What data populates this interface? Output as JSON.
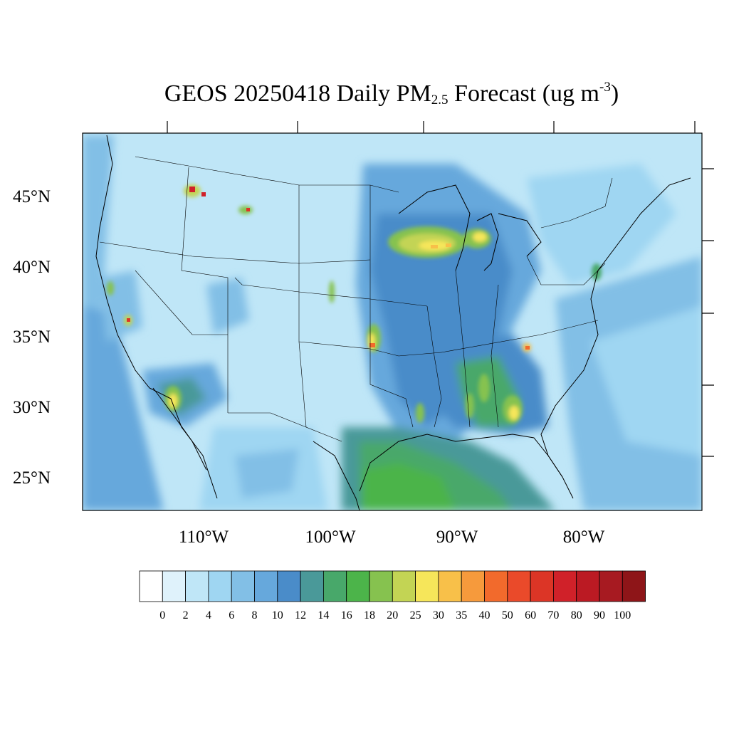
{
  "title": {
    "prefix": "GEOS 20250418 Daily PM",
    "subscript": "2.5",
    "middle": " Forecast (ug m",
    "superscript": "-3",
    "suffix": ")"
  },
  "map": {
    "lat_labels": [
      "45°N",
      "40°N",
      "35°N",
      "30°N",
      "25°N"
    ],
    "lon_labels": [
      "110°W",
      "100°W",
      "90°W",
      "80°W"
    ],
    "background_color": "#bfe6f7"
  },
  "colorbar": {
    "labels": [
      "0",
      "2",
      "4",
      "6",
      "8",
      "10",
      "12",
      "14",
      "16",
      "18",
      "20",
      "25",
      "30",
      "35",
      "40",
      "50",
      "60",
      "70",
      "80",
      "90",
      "100"
    ],
    "colors": [
      "#ffffff",
      "#dff2fb",
      "#bfe6f7",
      "#9fd6f2",
      "#82bfe6",
      "#66a8dc",
      "#4a8cc9",
      "#4a9999",
      "#48a86a",
      "#4cb44a",
      "#86c24f",
      "#c3d454",
      "#f6e65a",
      "#f8c049",
      "#f69a3c",
      "#f26a2c",
      "#ea4a2a",
      "#dc3526",
      "#d02129",
      "#bb1a23",
      "#a71a21",
      "#8e1518"
    ]
  }
}
